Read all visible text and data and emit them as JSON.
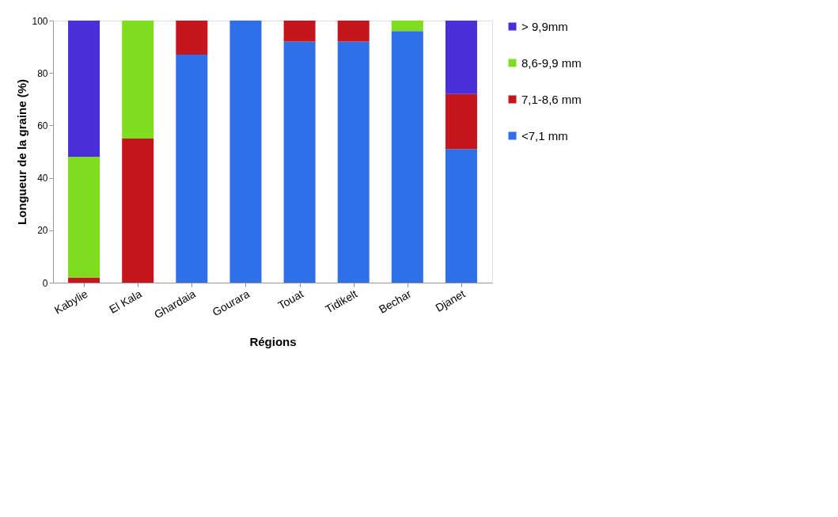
{
  "chart_data": {
    "type": "bar",
    "stacked": true,
    "xlabel": "Régions",
    "ylabel": "Longueur de la graine (%)",
    "categories": [
      "Kabylie",
      "El Kala",
      "Ghardaia",
      "Gourara",
      "Touat",
      "Tidikelt",
      "Bechar",
      "Djanet"
    ],
    "series": [
      {
        "name": "<7,1 mm",
        "color": "#2f6fe8",
        "values": [
          0,
          0,
          87,
          100,
          92,
          92,
          96,
          51
        ]
      },
      {
        "name": "7,1-8,6 mm",
        "color": "#c4161c",
        "values": [
          2,
          55,
          13,
          0,
          8,
          8,
          0,
          21
        ]
      },
      {
        "name": "8,6-9,9  mm",
        "color": "#7fdc1e",
        "values": [
          46,
          45,
          0,
          0,
          0,
          0,
          4,
          0
        ]
      },
      {
        "name": "> 9,9mm",
        "color": "#4a2fd8",
        "values": [
          52,
          0,
          0,
          0,
          0,
          0,
          0,
          28
        ]
      }
    ],
    "ylim": [
      0,
      100
    ],
    "yticks": [
      0,
      20,
      40,
      60,
      80,
      100
    ],
    "grid": false,
    "legend": "right"
  }
}
